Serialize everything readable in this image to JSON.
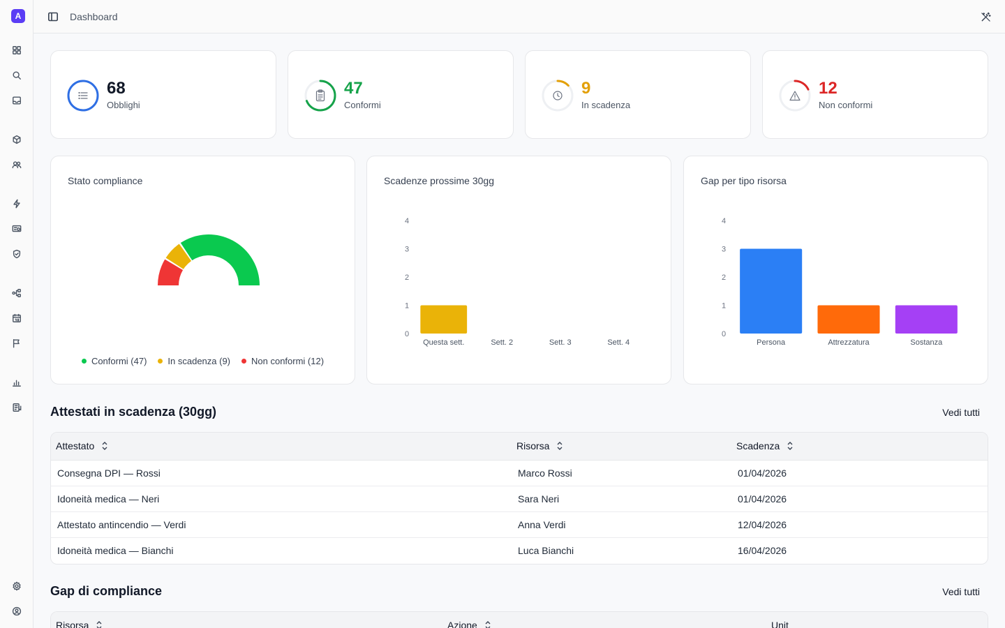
{
  "app": {
    "logo_letter": "A"
  },
  "header": {
    "breadcrumb": "Dashboard"
  },
  "sidebar": {
    "icons": [
      "grid-icon",
      "search-icon",
      "inbox-icon",
      "box-icon",
      "users-icon",
      "bolt-icon",
      "checklist-icon",
      "shield-icon",
      "workflow-icon",
      "calendar-icon",
      "flag-icon",
      "bar-chart-icon",
      "certificate-icon",
      "settings-icon",
      "user-circle-icon"
    ]
  },
  "stats": [
    {
      "value": "68",
      "label": "Obblighi",
      "color": "#2f6fe4",
      "fraction": 1.0
    },
    {
      "value": "47",
      "label": "Conformi",
      "color": "#16a34a",
      "fraction": 0.69
    },
    {
      "value": "9",
      "label": "In scadenza",
      "color": "#e3a008",
      "fraction": 0.13
    },
    {
      "value": "12",
      "label": "Non conformi",
      "color": "#dc2626",
      "fraction": 0.18
    }
  ],
  "charts": {
    "stato": {
      "title": "Stato compliance",
      "legend": [
        "Conformi (47)",
        "In scadenza (9)",
        "Non conformi (12)"
      ]
    },
    "scadenze": {
      "title": "Scadenze prossime 30gg"
    },
    "gap": {
      "title": "Gap per tipo risorsa"
    }
  },
  "chart_data": [
    {
      "type": "pie",
      "title": "Stato compliance",
      "categories": [
        "Conformi",
        "In scadenza",
        "Non conformi"
      ],
      "values": [
        47,
        9,
        12
      ],
      "colors": [
        "#0ac94f",
        "#eab308",
        "#ef3535"
      ]
    },
    {
      "type": "bar",
      "title": "Scadenze prossime 30gg",
      "categories": [
        "Questa sett.",
        "Sett. 2",
        "Sett. 3",
        "Sett. 4"
      ],
      "values": [
        1,
        0,
        0,
        0
      ],
      "ylim": [
        0,
        4
      ],
      "yticks": [
        "0",
        "1",
        "2",
        "3",
        "4"
      ],
      "colors": [
        "#eab308"
      ]
    },
    {
      "type": "bar",
      "title": "Gap per tipo risorsa",
      "categories": [
        "Persona",
        "Attrezzatura",
        "Sostanza"
      ],
      "values": [
        3,
        1,
        1
      ],
      "ylim": [
        0,
        4
      ],
      "yticks": [
        "0",
        "1",
        "2",
        "3",
        "4"
      ],
      "colors": [
        "#2b7ff5",
        "#ff6a0a",
        "#a540f5"
      ]
    }
  ],
  "attestati": {
    "title": "Attestati in scadenza (30gg)",
    "see_all": "Vedi tutti",
    "columns": [
      "Attestato",
      "Risorsa",
      "Scadenza"
    ],
    "rows": [
      [
        "Consegna DPI — Rossi",
        "Marco Rossi",
        "01/04/2026"
      ],
      [
        "Idoneità medica — Neri",
        "Sara Neri",
        "01/04/2026"
      ],
      [
        "Attestato antincendio — Verdi",
        "Anna Verdi",
        "12/04/2026"
      ],
      [
        "Idoneità medica — Bianchi",
        "Luca Bianchi",
        "16/04/2026"
      ]
    ]
  },
  "gap_section": {
    "title": "Gap di compliance",
    "see_all": "Vedi tutti",
    "columns": [
      "Risorsa",
      "Azione",
      "Unit"
    ]
  }
}
